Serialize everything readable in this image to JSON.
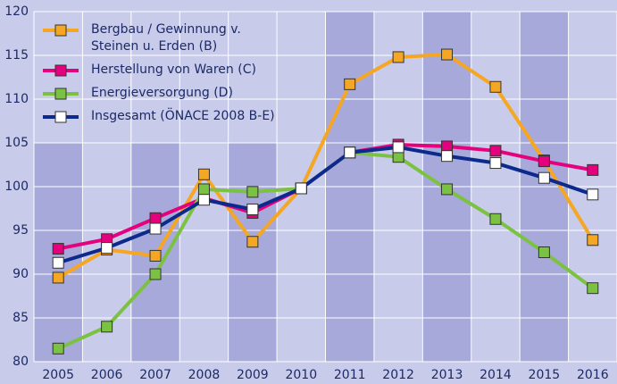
{
  "chart_data": {
    "type": "line",
    "categories": [
      "2005",
      "2006",
      "2007",
      "2008",
      "2009",
      "2010",
      "2011",
      "2012",
      "2013",
      "2014",
      "2015",
      "2016"
    ],
    "series": [
      {
        "name": "Bergbau / Gewinnung v. Steinen u. Erden (B)",
        "color": "#f5a623",
        "marker_fill": "#f5a623",
        "values": [
          89.6,
          92.8,
          92.1,
          101.4,
          93.7,
          99.8,
          111.7,
          114.8,
          115.1,
          111.4,
          103.0,
          93.9
        ]
      },
      {
        "name": "Herstellung von Waren (C)",
        "color": "#e5007e",
        "marker_fill": "#e5007e",
        "values": [
          92.9,
          94.0,
          96.4,
          98.7,
          97.0,
          99.8,
          103.9,
          104.8,
          104.6,
          104.1,
          102.9,
          101.9
        ]
      },
      {
        "name": "Energieversorgung (D)",
        "color": "#7cc242",
        "marker_fill": "#7cc242",
        "values": [
          81.5,
          84.0,
          90.0,
          99.7,
          99.4,
          99.8,
          103.9,
          103.4,
          99.7,
          96.3,
          92.5,
          88.4
        ]
      },
      {
        "name": "Insgesamt (ÖNACE 2008 B-E)",
        "color": "#0b2a8c",
        "marker_fill": "#ffffff",
        "values": [
          91.3,
          93.0,
          95.2,
          98.5,
          97.4,
          99.8,
          103.9,
          104.5,
          103.5,
          102.7,
          101.0,
          99.1
        ]
      }
    ],
    "ylim": [
      80,
      120
    ],
    "yticks": [
      80,
      85,
      90,
      95,
      100,
      105,
      110,
      115,
      120
    ],
    "grid": true
  }
}
